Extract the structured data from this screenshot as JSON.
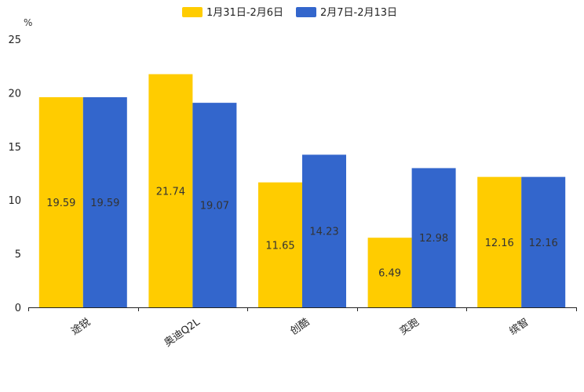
{
  "chart_data": {
    "type": "bar",
    "unit_label": "%",
    "categories": [
      "途锐",
      "奥迪Q2L",
      "创酷",
      "奕跑",
      "缤智"
    ],
    "series": [
      {
        "name": "1月31日-2月6日",
        "color": "#FFCC00",
        "values": [
          19.59,
          21.74,
          11.65,
          6.49,
          12.16
        ]
      },
      {
        "name": "2月7日-2月13日",
        "color": "#3366CC",
        "values": [
          19.59,
          19.07,
          14.23,
          12.98,
          12.16
        ]
      }
    ],
    "data_labels": [
      [
        "19.59",
        "21.74",
        "11.65",
        "6.49",
        "12.16"
      ],
      [
        "19.59",
        "19.07",
        "14.23",
        "12.98",
        "12.16"
      ]
    ],
    "ylim": [
      0,
      25
    ],
    "yticks": [
      0,
      5,
      10,
      15,
      20,
      25
    ],
    "grid": false,
    "legend_position": "top-center",
    "xlabel": "",
    "ylabel": "%"
  }
}
